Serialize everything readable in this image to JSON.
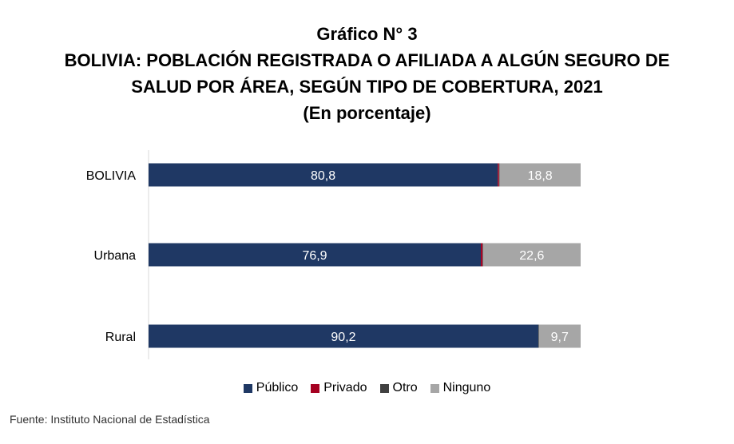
{
  "chart_data": {
    "type": "bar",
    "orientation": "horizontal",
    "stacked": true,
    "title_lines": [
      "Gráfico N° 3",
      "BOLIVIA: POBLACIÓN REGISTRADA O AFILIADA A ALGÚN SEGURO DE",
      "SALUD POR ÁREA, SEGÚN TIPO DE COBERTURA, 2021",
      "(En porcentaje)"
    ],
    "categories": [
      "BOLIVIA",
      "Urbana",
      "Rural"
    ],
    "series": [
      {
        "name": "Público",
        "color": "#1f3864",
        "values": [
          80.8,
          76.9,
          90.2
        ],
        "labels": [
          "80,8",
          "76,9",
          "90,2"
        ]
      },
      {
        "name": "Privado",
        "color": "#a50021",
        "values": [
          0.3,
          0.4,
          0.0
        ],
        "labels": [
          "",
          "",
          ""
        ]
      },
      {
        "name": "Otro",
        "color": "#404040",
        "values": [
          0.1,
          0.1,
          0.1
        ],
        "labels": [
          "",
          "",
          ""
        ]
      },
      {
        "name": "Ninguno",
        "color": "#a6a6a6",
        "values": [
          18.8,
          22.6,
          9.7
        ],
        "labels": [
          "18,8",
          "22,6",
          "9,7"
        ]
      }
    ],
    "xlim": [
      0,
      100
    ],
    "grid": false,
    "legend_position": "bottom",
    "source": "Fuente: Instituto Nacional de Estadística"
  }
}
